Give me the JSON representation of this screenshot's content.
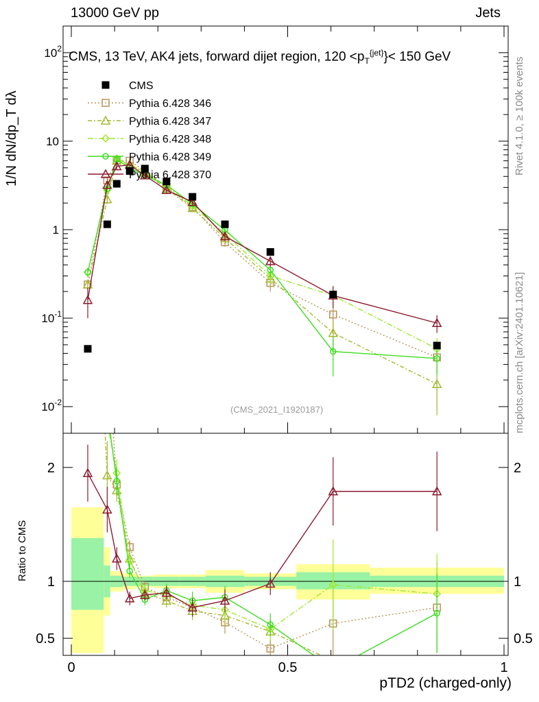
{
  "header": {
    "left": "13000 GeV pp",
    "right": "Jets",
    "title": "CMS, 13 TeV, AK4 jets, forward dijet region, 120 <p",
    "title_sup": "{jet}",
    "title_sub": "T",
    "title_tail": "}< 150 GeV"
  },
  "side_labels": {
    "rivet": "Rivet 4.1.0, ≥ 100k events",
    "mcplots": "mcplots.cern.ch [arXiv:2401.10621]"
  },
  "watermark": "(CMS_2021_I1920187)",
  "axes": {
    "main_ylabel": "1/N dN/dp_T dλ",
    "ratio_ylabel": "Ratio to CMS",
    "xlabel": "pTD2 (charged-only)"
  },
  "colors": {
    "cms": "#000000",
    "p346": "#b8935a",
    "p347": "#a4b82e",
    "p348": "#9ee82e",
    "p349": "#3cdc1e",
    "p370": "#8b1a2e",
    "band_inner": "#99f2a5",
    "band_outer": "#ffff99"
  },
  "chart_data": {
    "type": "scatter",
    "x_range": [
      0,
      1
    ],
    "main_yscale": "log",
    "main_ylim": [
      0.005,
      200
    ],
    "ratio_ylim": [
      0.35,
      2.3
    ],
    "legend_position": "top-left",
    "main_yticks": [
      {
        "value": 0.01,
        "label": "10",
        "exp": "-2"
      },
      {
        "value": 0.1,
        "label": "10",
        "exp": "-1"
      },
      {
        "value": 1,
        "label": "1",
        "exp": ""
      },
      {
        "value": 10,
        "label": "10",
        "exp": ""
      },
      {
        "value": 100,
        "label": "10",
        "exp": "2"
      }
    ],
    "ratio_yticks": [
      {
        "value": 0.5,
        "label": "0.5"
      },
      {
        "value": 1,
        "label": "1"
      },
      {
        "value": 2,
        "label": "2"
      }
    ],
    "xticks": [
      {
        "value": 0,
        "label": "0"
      },
      {
        "value": 0.5,
        "label": "0.5"
      },
      {
        "value": 1,
        "label": "1"
      }
    ],
    "bins": [
      {
        "lo": 0.0,
        "hi": 0.075
      },
      {
        "lo": 0.075,
        "hi": 0.09
      },
      {
        "lo": 0.09,
        "hi": 0.12
      },
      {
        "lo": 0.12,
        "hi": 0.15
      },
      {
        "lo": 0.15,
        "hi": 0.19
      },
      {
        "lo": 0.19,
        "hi": 0.25
      },
      {
        "lo": 0.25,
        "hi": 0.31
      },
      {
        "lo": 0.31,
        "hi": 0.4
      },
      {
        "lo": 0.4,
        "hi": 0.52
      },
      {
        "lo": 0.52,
        "hi": 0.69
      },
      {
        "lo": 0.69,
        "hi": 1.0
      }
    ],
    "cms": {
      "name": "CMS",
      "x": [
        0.038,
        0.083,
        0.105,
        0.135,
        0.17,
        0.22,
        0.28,
        0.355,
        0.46,
        0.605,
        0.845
      ],
      "y": [
        0.045,
        1.15,
        3.3,
        4.6,
        4.9,
        3.5,
        2.35,
        1.15,
        0.56,
        0.185,
        0.049
      ],
      "band_inner": [
        [
          0.75,
          1.38
        ],
        [
          0.86,
          1.14
        ],
        [
          0.95,
          1.05
        ],
        [
          0.96,
          1.04
        ],
        [
          0.96,
          1.04
        ],
        [
          0.96,
          1.04
        ],
        [
          0.96,
          1.04
        ],
        [
          0.95,
          1.05
        ],
        [
          0.96,
          1.04
        ],
        [
          0.93,
          1.08
        ],
        [
          0.95,
          1.05
        ]
      ],
      "band_outer": [
        [
          0.37,
          1.65
        ],
        [
          0.7,
          1.3
        ],
        [
          0.91,
          1.09
        ],
        [
          0.93,
          1.07
        ],
        [
          0.95,
          1.05
        ],
        [
          0.94,
          1.06
        ],
        [
          0.94,
          1.06
        ],
        [
          0.9,
          1.1
        ],
        [
          0.93,
          1.07
        ],
        [
          0.84,
          1.15
        ],
        [
          0.89,
          1.12
        ]
      ]
    },
    "series": [
      {
        "name": "Pythia 6.428 346",
        "key": "p346",
        "marker": "square",
        "dash": "2,3",
        "y": [
          0.24,
          3.6,
          6.1,
          6.0,
          4.6,
          3.0,
          1.8,
          0.72,
          0.25,
          0.11,
          0.036
        ],
        "err": [
          0.03,
          0.3,
          0.4,
          0.4,
          0.3,
          0.2,
          0.15,
          0.08,
          0.05,
          0.04,
          0.012
        ],
        "ratio": [
          5.3,
          3.1,
          1.85,
          1.3,
          0.95,
          0.86,
          0.77,
          0.64,
          0.41,
          0.63,
          0.77
        ],
        "ratio_err": [
          0.8,
          0.3,
          0.1,
          0.06,
          0.05,
          0.06,
          0.08,
          0.1,
          0.08,
          0.3,
          0.4
        ]
      },
      {
        "name": "Pythia 6.428 347",
        "key": "p347",
        "marker": "triangle",
        "dash": "6,3,2,3",
        "y": [
          0.24,
          2.2,
          6.0,
          5.5,
          4.4,
          2.9,
          1.75,
          0.8,
          0.28,
          0.068,
          0.018
        ],
        "err": [
          0.03,
          0.25,
          0.4,
          0.4,
          0.3,
          0.2,
          0.15,
          0.1,
          0.06,
          0.025,
          0.01
        ],
        "ratio": [
          5.3,
          1.93,
          1.8,
          1.2,
          0.9,
          0.83,
          0.74,
          0.7,
          0.56,
          0.3,
          0.3
        ],
        "ratio_err": [
          0.8,
          0.3,
          0.1,
          0.06,
          0.05,
          0.06,
          0.08,
          0.1,
          0.1,
          0.15,
          0.2
        ]
      },
      {
        "name": "Pythia 6.428 348",
        "key": "p348",
        "marker": "diamond",
        "dash": "8,3,2,3",
        "y": [
          0.33,
          2.8,
          6.4,
          5.4,
          4.5,
          3.1,
          1.85,
          0.9,
          0.3,
          0.18,
          0.045
        ],
        "err": [
          0.04,
          0.3,
          0.4,
          0.4,
          0.3,
          0.2,
          0.15,
          0.1,
          0.06,
          0.05,
          0.015
        ],
        "ratio": [
          7.3,
          2.4,
          1.95,
          1.18,
          0.92,
          0.88,
          0.79,
          0.75,
          0.58,
          0.97,
          0.89
        ],
        "ratio_err": [
          0.9,
          0.35,
          0.12,
          0.06,
          0.05,
          0.06,
          0.08,
          0.1,
          0.1,
          0.4,
          0.35
        ]
      },
      {
        "name": "Pythia 6.428 349",
        "key": "p349",
        "marker": "circle",
        "dash": "",
        "y": [
          0.33,
          2.9,
          6.2,
          5.0,
          4.1,
          3.2,
          1.95,
          0.99,
          0.35,
          0.042,
          0.035
        ],
        "err": [
          0.04,
          0.3,
          0.4,
          0.4,
          0.3,
          0.2,
          0.15,
          0.1,
          0.06,
          0.02,
          0.012
        ],
        "ratio": [
          7.3,
          2.5,
          1.88,
          1.09,
          0.84,
          0.92,
          0.83,
          0.86,
          0.62,
          0.23,
          0.72
        ],
        "ratio_err": [
          0.9,
          0.35,
          0.12,
          0.06,
          0.05,
          0.06,
          0.08,
          0.1,
          0.1,
          0.12,
          0.35
        ]
      },
      {
        "name": "Pythia 6.428 370",
        "key": "p370",
        "marker": "triangle",
        "dash": "",
        "y": [
          0.16,
          3.2,
          5.2,
          5.4,
          4.1,
          2.8,
          2.05,
          0.84,
          0.44,
          0.18,
          0.088
        ],
        "err": [
          0.06,
          0.3,
          0.4,
          0.4,
          0.3,
          0.2,
          0.15,
          0.1,
          0.06,
          0.05,
          0.02
        ],
        "ratio": [
          1.95,
          1.63,
          1.2,
          0.85,
          0.88,
          0.9,
          0.77,
          0.83,
          0.98,
          1.79,
          1.79
        ],
        "ratio_err": [
          0.25,
          0.2,
          0.1,
          0.06,
          0.05,
          0.06,
          0.08,
          0.1,
          0.1,
          0.3,
          0.35
        ]
      }
    ]
  }
}
